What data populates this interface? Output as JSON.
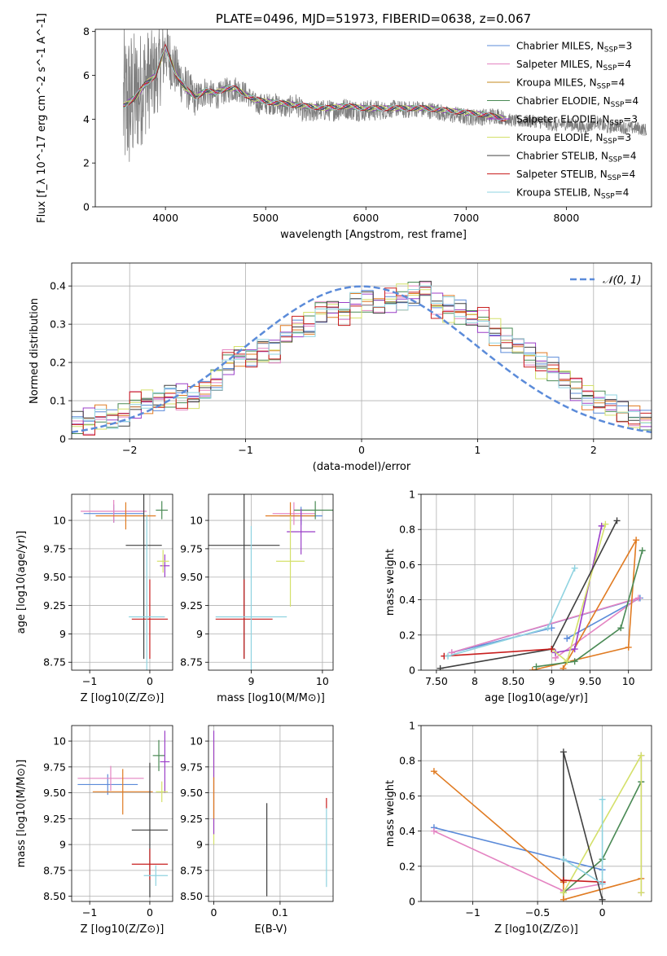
{
  "chart_data": [
    {
      "type": "line",
      "title": "PLATE=0496, MJD=51973, FIBERID=0638, z=0.067",
      "xlabel": "wavelength [Angstrom, rest frame]",
      "ylabel": "Flux [f_λ 10^-17 erg cm^-2 s^-1 A^-1]",
      "xlim": [
        3300,
        8850
      ],
      "ylim": [
        0,
        8.1
      ],
      "xticks": [
        4000,
        5000,
        6000,
        7000,
        8000
      ],
      "yticks": [
        0,
        2,
        4,
        6,
        8
      ],
      "grid": false,
      "legend_position": "top-right",
      "data_spectrum": {
        "x": [
          3580,
          3650,
          3700,
          3800,
          3900,
          3950,
          4000,
          4100,
          4200,
          4300,
          4400,
          4500,
          4600,
          4700,
          4800,
          4900,
          5000,
          5100,
          5200,
          5300,
          5400,
          5500,
          5600,
          5700,
          5800,
          5900,
          6000,
          6100,
          6200,
          6300,
          6400,
          6500,
          6600,
          6700,
          6800,
          6900,
          7000,
          7100,
          7200,
          7300,
          7400,
          7500,
          7600,
          7700,
          7800,
          7900,
          8000,
          8100,
          8200,
          8300,
          8400,
          8500,
          8600,
          8700,
          8800
        ],
        "y": [
          4.6,
          4.8,
          5.0,
          5.7,
          6.0,
          6.4,
          7.2,
          6.2,
          5.5,
          4.9,
          5.3,
          5.0,
          5.3,
          5.4,
          5.2,
          4.7,
          4.7,
          4.7,
          4.5,
          4.7,
          4.2,
          4.4,
          4.4,
          4.4,
          4.5,
          4.4,
          4.4,
          4.4,
          4.4,
          4.5,
          4.4,
          4.5,
          4.4,
          4.4,
          4.2,
          4.2,
          4.1,
          4.1,
          4.1,
          4.2,
          4.0,
          3.9,
          3.9,
          3.9,
          3.8,
          3.7,
          3.8,
          3.7,
          3.6,
          3.9,
          3.6,
          3.7,
          3.6,
          3.6,
          3.5
        ],
        "noise": [
          3.5,
          3.5,
          3.0,
          2.5,
          2.0,
          1.8,
          1.5,
          1.2,
          1.0,
          0.8,
          0.7,
          0.6,
          0.6,
          0.6,
          0.5,
          0.5,
          0.5,
          0.5,
          0.5,
          0.5,
          0.5,
          0.5,
          0.5,
          0.5,
          0.5,
          0.5,
          0.5,
          0.5,
          0.4,
          0.4,
          0.4,
          0.4,
          0.4,
          0.4,
          0.4,
          0.4,
          0.4,
          0.4,
          0.4,
          0.4,
          0.3,
          0.3,
          0.3,
          0.3,
          0.3,
          0.3,
          0.3,
          0.3,
          0.3,
          0.3,
          0.3,
          0.3,
          0.3,
          0.3,
          0.3
        ]
      },
      "model_spectrum": {
        "x": [
          3580,
          3700,
          3800,
          3900,
          4000,
          4100,
          4200,
          4300,
          4400,
          4500,
          4600,
          4700,
          4800,
          4900,
          5000,
          5200,
          5400,
          5600,
          5800,
          6000,
          6200,
          6400,
          6600,
          6800,
          7000,
          7200,
          7400
        ],
        "y": [
          4.6,
          5.0,
          5.6,
          6.0,
          7.3,
          6.1,
          5.4,
          5.0,
          5.3,
          5.2,
          5.4,
          5.4,
          5.1,
          4.9,
          4.8,
          4.7,
          4.6,
          4.5,
          4.6,
          4.5,
          4.5,
          4.5,
          4.5,
          4.4,
          4.3,
          4.2,
          4.0
        ]
      },
      "series": [
        {
          "name": "Chabrier MILES, N_SSP=3",
          "color": "#5b8bd9"
        },
        {
          "name": "Salpeter MILES, N_SSP=4",
          "color": "#e484c2"
        },
        {
          "name": "Kroupa MILES, N_SSP=4",
          "color": "#c48a1c"
        },
        {
          "name": "Chabrier ELODIE, N_SSP=4",
          "color": "#4a8a55"
        },
        {
          "name": "Salpeter ELODIE, N_SSP=3",
          "color": "#9b3fc8"
        },
        {
          "name": "Kroupa ELODIE, N_SSP=3",
          "color": "#d4e06a"
        },
        {
          "name": "Chabrier STELIB, N_SSP=4",
          "color": "#404040"
        },
        {
          "name": "Salpeter STELIB, N_SSP=4",
          "color": "#c81e1e"
        },
        {
          "name": "Kroupa STELIB, N_SSP=4",
          "color": "#8fd3e0"
        }
      ]
    },
    {
      "type": "histogram",
      "xlabel": "(data-model)/error",
      "ylabel": "Normed distribution",
      "xlim": [
        -2.5,
        2.5
      ],
      "ylim": [
        0,
        0.46
      ],
      "xticks": [
        -2,
        -1,
        0,
        1,
        2
      ],
      "yticks": [
        0.0,
        0.1,
        0.2,
        0.3,
        0.4
      ],
      "grid": true,
      "legend_position": "top-right",
      "legend": [
        "𝒩(0, 1)"
      ],
      "reference_curve": "normal(0,1)",
      "reference_color": "#5b8bd9",
      "bin_width": 0.1,
      "hist_colors": [
        "#5b8bd9",
        "#e484c2",
        "#e07b22",
        "#4a8a55",
        "#9b3fc8",
        "#d4e06a",
        "#404040",
        "#c81e1e",
        "#8fd3e0"
      ],
      "hist_values": [
        0.04,
        0.045,
        0.055,
        0.05,
        0.065,
        0.09,
        0.1,
        0.1,
        0.11,
        0.11,
        0.105,
        0.125,
        0.155,
        0.2,
        0.22,
        0.215,
        0.23,
        0.23,
        0.27,
        0.29,
        0.3,
        0.33,
        0.34,
        0.33,
        0.35,
        0.36,
        0.35,
        0.36,
        0.37,
        0.38,
        0.39,
        0.35,
        0.34,
        0.33,
        0.32,
        0.31,
        0.28,
        0.26,
        0.24,
        0.22,
        0.19,
        0.18,
        0.16,
        0.13,
        0.11,
        0.1,
        0.085,
        0.07,
        0.055,
        0.045
      ]
    },
    {
      "type": "scatter",
      "subtype": "errorbars",
      "xlabel": "Z [log10(Z/Z⊙)]",
      "ylabel": "age  [log10(age/yr)]",
      "xlim": [
        -1.3,
        0.38
      ],
      "ylim": [
        8.68,
        10.23
      ],
      "xticks": [
        -1,
        0
      ],
      "yticks": [
        8.75,
        9.0,
        9.25,
        9.5,
        9.75,
        10.0
      ],
      "grid": true,
      "points": [
        {
          "x": -0.6,
          "y": 10.06,
          "xerr": 0.5,
          "yerr": 0.08,
          "color": "#5b8bd9"
        },
        {
          "x": -0.6,
          "y": 10.08,
          "xerr": 0.55,
          "yerr": 0.1,
          "color": "#e484c2"
        },
        {
          "x": -0.4,
          "y": 10.04,
          "xerr": 0.5,
          "yerr": 0.12,
          "color": "#e07b22"
        },
        {
          "x": 0.2,
          "y": 10.09,
          "xerr": 0.1,
          "yerr": 0.08,
          "color": "#4a8a55"
        },
        {
          "x": 0.25,
          "y": 9.6,
          "xerr": 0.08,
          "yerr": 0.1,
          "color": "#9b3fc8"
        },
        {
          "x": 0.22,
          "y": 9.64,
          "xerr": 0.1,
          "yerr": 0.1,
          "color": "#d4e06a"
        },
        {
          "x": -0.1,
          "y": 9.78,
          "xerr": 0.3,
          "yerr": 1.0,
          "color": "#404040"
        },
        {
          "x": 0.0,
          "y": 9.13,
          "xerr": 0.3,
          "yerr": 0.35,
          "color": "#c81e1e"
        },
        {
          "x": -0.05,
          "y": 9.15,
          "xerr": 0.3,
          "yerr": 0.9,
          "color": "#8fd3e0"
        }
      ]
    },
    {
      "type": "scatter",
      "subtype": "errorbars",
      "xlabel": "mass [log10(M/M⊙)]",
      "ylabel": "",
      "xlim": [
        8.4,
        10.15
      ],
      "ylim": [
        8.68,
        10.23
      ],
      "xticks": [
        9,
        10
      ],
      "yticks": [
        8.75,
        9.0,
        9.25,
        9.5,
        9.75,
        10.0
      ],
      "grid": true,
      "points": [
        {
          "x": 9.7,
          "y": 10.04,
          "xerr": 0.3,
          "yerr": 0.08,
          "color": "#5b8bd9"
        },
        {
          "x": 9.6,
          "y": 10.06,
          "xerr": 0.3,
          "yerr": 0.1,
          "color": "#e484c2"
        },
        {
          "x": 9.55,
          "y": 10.04,
          "xerr": 0.35,
          "yerr": 0.12,
          "color": "#e07b22"
        },
        {
          "x": 9.9,
          "y": 10.09,
          "xerr": 0.3,
          "yerr": 0.08,
          "color": "#4a8a55"
        },
        {
          "x": 9.7,
          "y": 9.9,
          "xerr": 0.2,
          "yerr": 0.2,
          "color": "#9b3fc8"
        },
        {
          "x": 9.55,
          "y": 9.64,
          "xerr": 0.2,
          "yerr": 0.4,
          "color": "#d4e06a"
        },
        {
          "x": 8.9,
          "y": 9.78,
          "xerr": 0.5,
          "yerr": 1.0,
          "color": "#404040"
        },
        {
          "x": 8.9,
          "y": 9.13,
          "xerr": 0.4,
          "yerr": 0.35,
          "color": "#c81e1e"
        },
        {
          "x": 9.0,
          "y": 9.15,
          "xerr": 0.5,
          "yerr": 0.8,
          "color": "#8fd3e0"
        }
      ]
    },
    {
      "type": "line",
      "xlabel": "age  [log10(age/yr)]",
      "ylabel": "mass weight",
      "xlim": [
        7.3,
        10.3
      ],
      "ylim": [
        0.0,
        1.0
      ],
      "xticks": [
        7.5,
        8.0,
        8.5,
        9.0,
        9.5,
        10.0
      ],
      "yticks": [
        0.0,
        0.2,
        0.4,
        0.6,
        0.8,
        1.0
      ],
      "grid": true,
      "series": [
        {
          "color": "#5b8bd9",
          "x": [
            9.2,
            10.15,
            7.7,
            9.0
          ],
          "y": [
            0.18,
            0.41,
            0.1,
            0.24
          ]
        },
        {
          "color": "#e484c2",
          "x": [
            9.05,
            10.13,
            7.7
          ],
          "y": [
            0.07,
            0.41,
            0.1
          ]
        },
        {
          "color": "#e07b22",
          "x": [
            8.75,
            10.0,
            10.1,
            9.15
          ],
          "y": [
            0.0,
            0.13,
            0.74,
            0.01
          ]
        },
        {
          "color": "#4a8a55",
          "x": [
            8.8,
            9.3,
            9.9,
            10.18
          ],
          "y": [
            0.02,
            0.05,
            0.24,
            0.68
          ]
        },
        {
          "color": "#9b3fc8",
          "x": [
            9.05,
            9.3,
            9.65
          ],
          "y": [
            0.1,
            0.12,
            0.82
          ]
        },
        {
          "color": "#d4e06a",
          "x": [
            9.0,
            9.2,
            9.7
          ],
          "y": [
            0.12,
            0.05,
            0.83
          ]
        },
        {
          "color": "#404040",
          "x": [
            7.55,
            9.0,
            9.85
          ],
          "y": [
            0.01,
            0.12,
            0.85
          ]
        },
        {
          "color": "#c81e1e",
          "x": [
            7.6,
            9.0
          ],
          "y": [
            0.08,
            0.12
          ]
        },
        {
          "color": "#8fd3e0",
          "x": [
            7.65,
            8.95,
            9.3
          ],
          "y": [
            0.08,
            0.24,
            0.58
          ]
        }
      ]
    },
    {
      "type": "scatter",
      "subtype": "errorbars",
      "xlabel": "Z [log10(Z/Z⊙)]",
      "ylabel": "mass [log10(M/M⊙)]",
      "xlim": [
        -1.3,
        0.38
      ],
      "ylim": [
        8.45,
        10.15
      ],
      "xticks": [
        -1,
        0
      ],
      "yticks": [
        8.5,
        8.75,
        9.0,
        9.25,
        9.5,
        9.75,
        10.0
      ],
      "grid": true,
      "points": [
        {
          "x": -0.7,
          "y": 9.58,
          "xerr": 0.5,
          "yerr": 0.1,
          "color": "#5b8bd9"
        },
        {
          "x": -0.65,
          "y": 9.64,
          "xerr": 0.55,
          "yerr": 0.12,
          "color": "#e484c2"
        },
        {
          "x": -0.45,
          "y": 9.51,
          "xerr": 0.5,
          "yerr": 0.22,
          "color": "#e07b22"
        },
        {
          "x": 0.15,
          "y": 9.86,
          "xerr": 0.1,
          "yerr": 0.15,
          "color": "#4a8a55"
        },
        {
          "x": 0.25,
          "y": 9.8,
          "xerr": 0.08,
          "yerr": 0.3,
          "color": "#9b3fc8"
        },
        {
          "x": 0.2,
          "y": 9.51,
          "xerr": 0.1,
          "yerr": 0.1,
          "color": "#d4e06a"
        },
        {
          "x": 0.0,
          "y": 9.14,
          "xerr": 0.3,
          "yerr": 0.65,
          "color": "#404040"
        },
        {
          "x": 0.0,
          "y": 8.81,
          "xerr": 0.3,
          "yerr": 0.15,
          "color": "#c81e1e"
        },
        {
          "x": 0.1,
          "y": 8.7,
          "xerr": 0.2,
          "yerr": 0.1,
          "color": "#8fd3e0"
        }
      ]
    },
    {
      "type": "scatter",
      "subtype": "errorbars",
      "xlabel": "E(B-V)",
      "ylabel": "",
      "xlim": [
        -0.008,
        0.18
      ],
      "ylim": [
        8.45,
        10.15
      ],
      "xticks": [
        0.0,
        0.1
      ],
      "yticks": [
        8.5,
        8.75,
        9.0,
        9.25,
        9.5,
        9.75,
        10.0
      ],
      "grid": true,
      "points": [
        {
          "x": 0.0,
          "y": 9.5,
          "yerr": 0.5,
          "color": "#d4e06a"
        },
        {
          "x": 0.0,
          "y": 9.6,
          "yerr": 0.5,
          "color": "#9b3fc8"
        },
        {
          "x": 0.0,
          "y": 9.45,
          "yerr": 0.2,
          "color": "#e07b22"
        },
        {
          "x": 0.08,
          "y": 8.95,
          "yerr": 0.45,
          "color": "#404040"
        },
        {
          "x": 0.17,
          "y": 9.4,
          "yerr": 0.05,
          "color": "#c81e1e"
        },
        {
          "x": 0.17,
          "y": 8.97,
          "yerr": 0.38,
          "color": "#8fd3e0"
        }
      ]
    },
    {
      "type": "line",
      "xlabel": "Z [log10(Z/Z⊙)]",
      "ylabel": "mass weight",
      "xlim": [
        -1.4,
        0.38
      ],
      "ylim": [
        0.0,
        1.0
      ],
      "xticks": [
        -1.0,
        -0.5,
        0.0
      ],
      "yticks": [
        0.0,
        0.2,
        0.4,
        0.6,
        0.8,
        1.0
      ],
      "grid": true,
      "series": [
        {
          "color": "#5b8bd9",
          "x": [
            -1.3,
            0.0
          ],
          "y": [
            0.42,
            0.18
          ]
        },
        {
          "color": "#e484c2",
          "x": [
            -1.3,
            -0.3,
            0.0
          ],
          "y": [
            0.4,
            0.06,
            0.1
          ]
        },
        {
          "color": "#e07b22",
          "x": [
            -1.3,
            -0.3,
            -0.3,
            0.3
          ],
          "y": [
            0.74,
            0.11,
            0.01,
            0.13
          ]
        },
        {
          "color": "#4a8a55",
          "x": [
            -0.3,
            0.0,
            0.3
          ],
          "y": [
            0.05,
            0.24,
            0.68
          ]
        },
        {
          "color": "#9b3fc8",
          "x": [
            0.3,
            0.3
          ],
          "y": [
            0.05,
            0.83
          ]
        },
        {
          "color": "#d4e06a",
          "x": [
            -0.3,
            0.3,
            0.3
          ],
          "y": [
            0.05,
            0.83,
            0.05
          ]
        },
        {
          "color": "#404040",
          "x": [
            -0.3,
            -0.3,
            0.0
          ],
          "y": [
            0.12,
            0.85,
            0.01
          ]
        },
        {
          "color": "#c81e1e",
          "x": [
            -0.3,
            0.0
          ],
          "y": [
            0.12,
            0.11
          ]
        },
        {
          "color": "#8fd3e0",
          "x": [
            -0.3,
            0.0,
            0.0
          ],
          "y": [
            0.24,
            0.1,
            0.58
          ]
        }
      ]
    }
  ]
}
